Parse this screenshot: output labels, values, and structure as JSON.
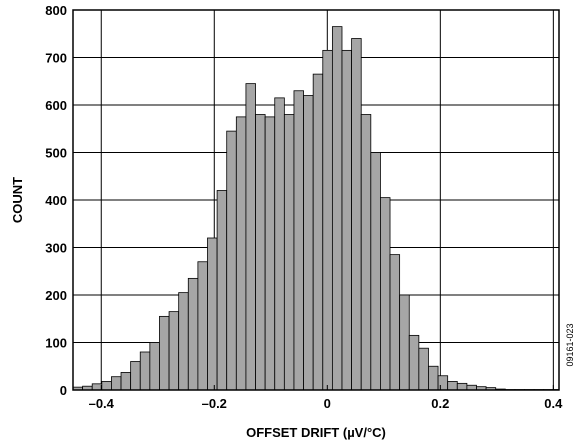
{
  "chart_data": {
    "type": "bar",
    "title": "",
    "xlabel": "OFFSET DRIFT (µV/°C)",
    "ylabel": "COUNT",
    "figure_id": "09161-023",
    "xlim": [
      -0.45,
      0.41
    ],
    "ylim": [
      0,
      800
    ],
    "xticks": [
      -0.4,
      -0.2,
      0,
      0.2,
      0.4
    ],
    "xtick_labels": [
      "–0.4",
      "–0.2",
      "0",
      "0.2",
      "0.4"
    ],
    "yticks": [
      0,
      100,
      200,
      300,
      400,
      500,
      600,
      700,
      800
    ],
    "ytick_labels": [
      "0",
      "100",
      "200",
      "300",
      "400",
      "500",
      "600",
      "700",
      "800"
    ],
    "grid": true,
    "bin_width": 0.017,
    "bin_start": -0.45,
    "values": [
      6,
      8,
      13,
      18,
      28,
      37,
      60,
      80,
      100,
      155,
      165,
      205,
      235,
      270,
      320,
      420,
      545,
      575,
      645,
      580,
      575,
      615,
      580,
      630,
      620,
      665,
      715,
      765,
      715,
      740,
      580,
      500,
      405,
      285,
      200,
      115,
      88,
      50,
      30,
      18,
      14,
      10,
      7,
      5,
      2,
      1,
      1,
      1,
      1,
      1,
      1,
      1,
      1,
      6
    ],
    "colors": {
      "bar_fill": "#a6a6a6",
      "bar_edge": "#000000",
      "grid": "#000000",
      "axis": "#000000"
    }
  }
}
